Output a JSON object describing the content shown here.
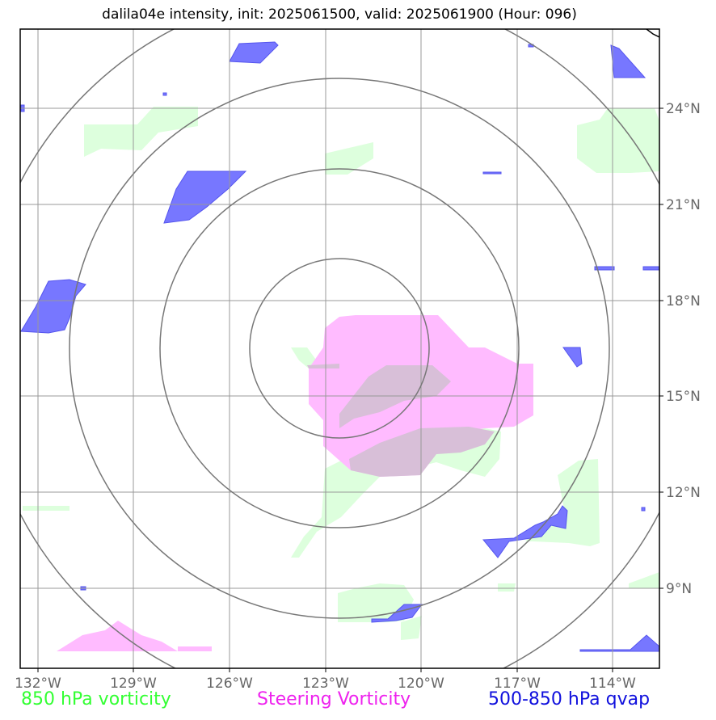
{
  "title": "dalila04e intensity, init: 2025061500, valid: 2025061900 (Hour: 096)",
  "lon_ticks": [
    "132°W",
    "129°W",
    "126°W",
    "123°W",
    "120°W",
    "117°W",
    "114°W"
  ],
  "lat_ticks": [
    "24°N",
    "21°N",
    "18°N",
    "15°N",
    "12°N",
    "9°N"
  ],
  "legend": {
    "vorticity": "850 hPa vorticity",
    "steering": "Steering Vorticity",
    "qvap": "500-850 hPa qvap"
  },
  "colors": {
    "vorticity_fill": "#ddffdd",
    "steering_fill": "#ffbbff",
    "qvap_fill": "#7777ff",
    "overlap_fill": "#d8bfd8",
    "grid": "#999999",
    "range_rings": "#777777"
  },
  "map": {
    "lon_range": [
      -132.5,
      -112.5
    ],
    "lat_range": [
      6.5,
      26.5
    ],
    "gridlines": true,
    "range_rings": 4
  }
}
